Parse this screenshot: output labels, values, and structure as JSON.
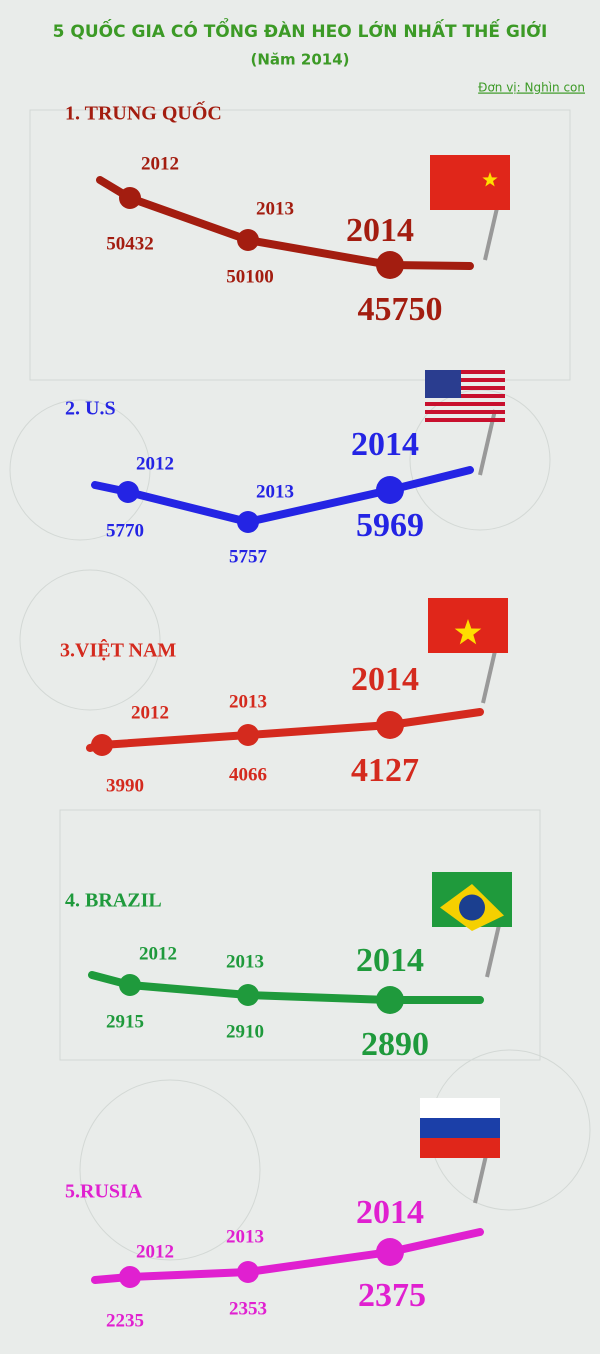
{
  "header": {
    "title": "5 QUỐC GIA CÓ TỔNG ĐÀN HEO LỚN NHẤT THẾ GIỚI",
    "subtitle": "(Năm 2014)",
    "unit": "Đơn vị: Nghìn con"
  },
  "countries": [
    {
      "name": "1. TRUNG QUỐC",
      "years": [
        "2012",
        "2013",
        "2014"
      ],
      "values": [
        50432,
        50100,
        45750
      ]
    },
    {
      "name": "2. U.S",
      "years": [
        "2012",
        "2013",
        "2014"
      ],
      "values": [
        5770,
        5757,
        5969
      ]
    },
    {
      "name": "3.VIỆT NAM",
      "years": [
        "2012",
        "2013",
        "2014"
      ],
      "values": [
        3990,
        4066,
        4127
      ]
    },
    {
      "name": "4. BRAZIL",
      "years": [
        "2012",
        "2013",
        "2014"
      ],
      "values": [
        2915,
        2910,
        2890
      ]
    },
    {
      "name": "5.RUSIA",
      "years": [
        "2012",
        "2013",
        "2014"
      ],
      "values": [
        2235,
        2353,
        2375
      ]
    }
  ]
}
